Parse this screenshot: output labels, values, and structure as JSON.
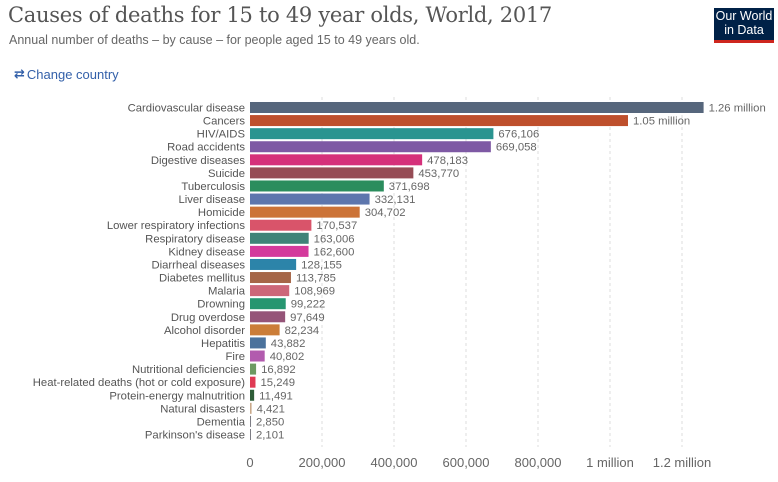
{
  "header": {
    "title": "Causes of deaths for 15 to 49 year olds, World, 2017",
    "subtitle": "Annual number of deaths – by cause – for people aged 15 to 49 years old.",
    "change_country_label": "Change country",
    "change_country_icon": "swap-arrows-icon",
    "logo_line1": "Our World",
    "logo_line2": "in Data"
  },
  "colors": {
    "logo_bg": "#002147",
    "logo_accent": "#ce261e",
    "link": "#3360a9"
  },
  "chart_data": {
    "type": "bar",
    "orientation": "horizontal",
    "title": "Causes of deaths for 15 to 49 year olds, World, 2017",
    "subtitle": "Annual number of deaths – by cause – for people aged 15 to 49 years old.",
    "xlabel": "",
    "ylabel": "",
    "xlim": [
      0,
      1260000
    ],
    "grid": true,
    "legend": "none",
    "x_ticks": [
      {
        "value": 0,
        "label": "0"
      },
      {
        "value": 200000,
        "label": "200,000"
      },
      {
        "value": 400000,
        "label": "400,000"
      },
      {
        "value": 600000,
        "label": "600,000"
      },
      {
        "value": 800000,
        "label": "800,000"
      },
      {
        "value": 1000000,
        "label": "1 million"
      },
      {
        "value": 1200000,
        "label": "1.2 million"
      }
    ],
    "bars": [
      {
        "category": "Cardiovascular disease",
        "value": 1260000,
        "label": "1.26 million",
        "color": "#56667c"
      },
      {
        "category": "Cancers",
        "value": 1050000,
        "label": "1.05 million",
        "color": "#be4f2c"
      },
      {
        "category": "HIV/AIDS",
        "value": 676106,
        "label": "676,106",
        "color": "#2a9490"
      },
      {
        "category": "Road accidents",
        "value": 669058,
        "label": "669,058",
        "color": "#7e59a4"
      },
      {
        "category": "Digestive diseases",
        "value": 478183,
        "label": "478,183",
        "color": "#d5307a"
      },
      {
        "category": "Suicide",
        "value": 453770,
        "label": "453,770",
        "color": "#964c55"
      },
      {
        "category": "Tuberculosis",
        "value": 371698,
        "label": "371,698",
        "color": "#2b8d5d"
      },
      {
        "category": "Liver disease",
        "value": 332131,
        "label": "332,131",
        "color": "#5d76ad"
      },
      {
        "category": "Homicide",
        "value": 304702,
        "label": "304,702",
        "color": "#cc7337"
      },
      {
        "category": "Lower respiratory infections",
        "value": 170537,
        "label": "170,537",
        "color": "#d9546a"
      },
      {
        "category": "Respiratory disease",
        "value": 163006,
        "label": "163,006",
        "color": "#3f8378"
      },
      {
        "category": "Kidney disease",
        "value": 162600,
        "label": "162,600",
        "color": "#d43a9c"
      },
      {
        "category": "Diarrheal diseases",
        "value": 128155,
        "label": "128,155",
        "color": "#2c84a9"
      },
      {
        "category": "Diabetes mellitus",
        "value": 113785,
        "label": "113,785",
        "color": "#a66648"
      },
      {
        "category": "Malaria",
        "value": 108969,
        "label": "108,969",
        "color": "#cd6779"
      },
      {
        "category": "Drowning",
        "value": 99222,
        "label": "99,222",
        "color": "#269670"
      },
      {
        "category": "Drug overdose",
        "value": 97649,
        "label": "97,649",
        "color": "#955478"
      },
      {
        "category": "Alcohol disorder",
        "value": 82234,
        "label": "82,234",
        "color": "#cb7d38"
      },
      {
        "category": "Hepatitis",
        "value": 43882,
        "label": "43,882",
        "color": "#4b729c"
      },
      {
        "category": "Fire",
        "value": 40802,
        "label": "40,802",
        "color": "#b25bae"
      },
      {
        "category": "Nutritional deficiencies",
        "value": 16892,
        "label": "16,892",
        "color": "#6c9a62"
      },
      {
        "category": "Heat-related deaths (hot or cold exposure)",
        "value": 15249,
        "label": "15,249",
        "color": "#df3a54"
      },
      {
        "category": "Protein-energy malnutrition",
        "value": 11491,
        "label": "11,491",
        "color": "#2e5d38"
      },
      {
        "category": "Natural disasters",
        "value": 4421,
        "label": "4,421",
        "color": "#c9a98a"
      },
      {
        "category": "Dementia",
        "value": 2850,
        "label": "2,850",
        "color": "#7d7d85"
      },
      {
        "category": "Parkinson's disease",
        "value": 2101,
        "label": "2,101",
        "color": "#7d7d85"
      }
    ]
  }
}
